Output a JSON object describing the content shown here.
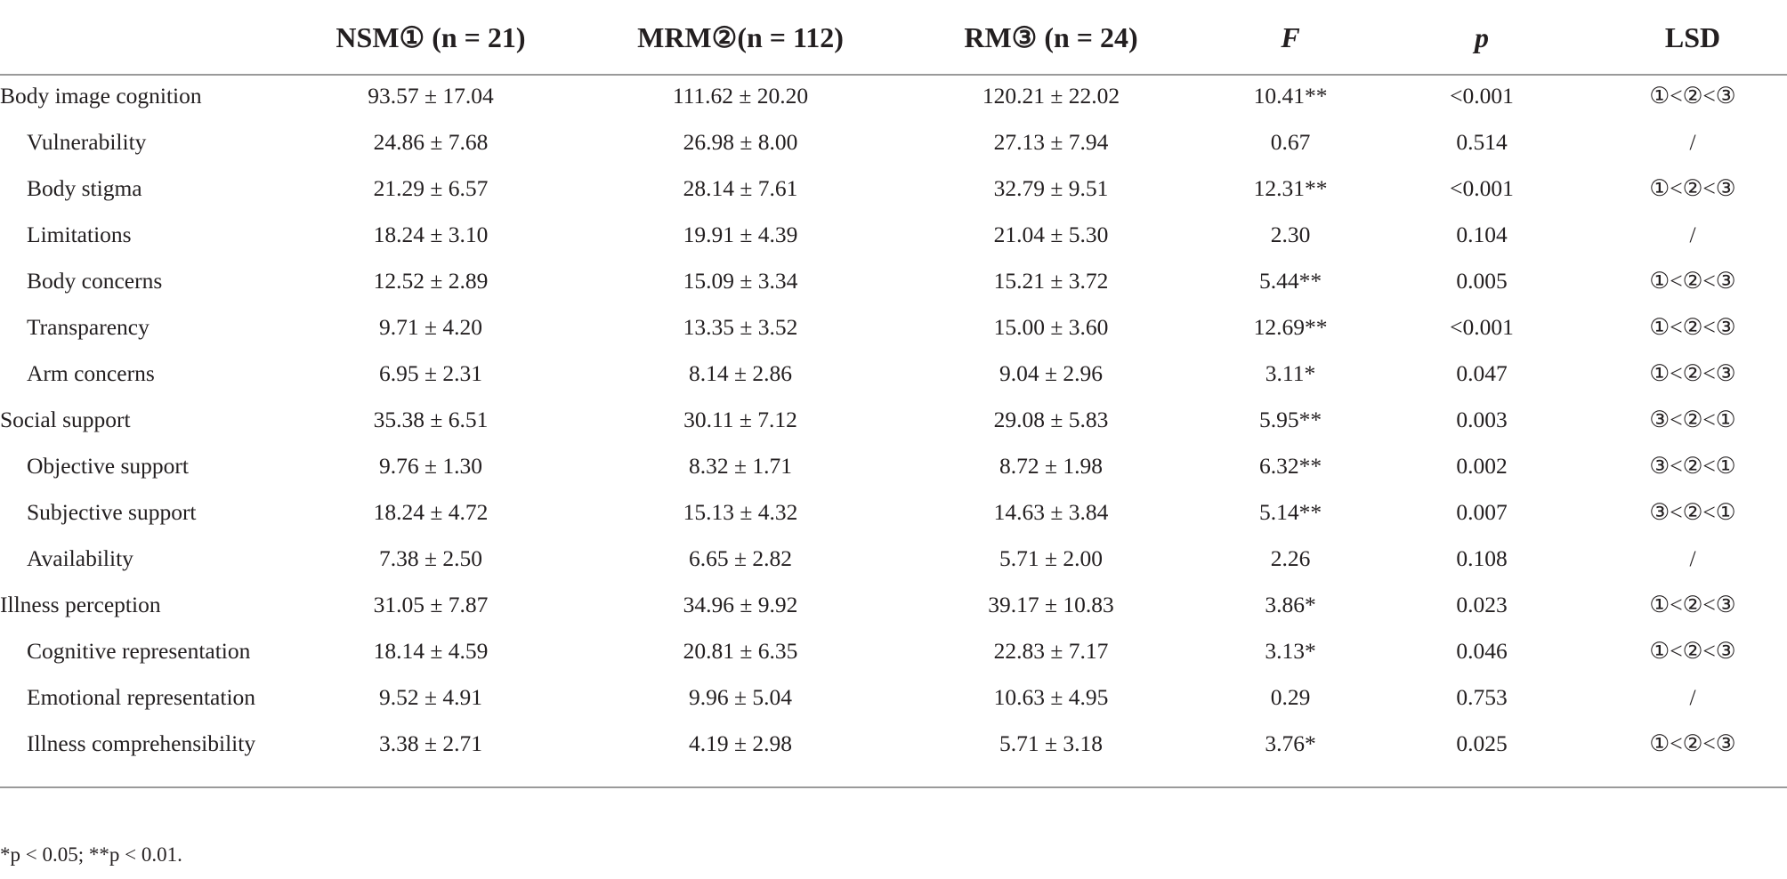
{
  "table": {
    "header": [
      "NSM① (n = 21)",
      "MRM②(n = 112)",
      "RM③ (n = 24)",
      "F",
      "p",
      "LSD"
    ],
    "sections": [
      {
        "row": [
          "Body image cognition",
          "93.57 ± 17.04",
          "111.62 ± 20.20",
          "120.21 ± 22.02",
          "10.41**",
          "<0.001",
          "①<②<③"
        ],
        "subrows": [
          [
            "Vulnerability",
            "24.86 ± 7.68",
            "26.98 ± 8.00",
            "27.13 ± 7.94",
            "0.67",
            "0.514",
            "/"
          ],
          [
            "Body stigma",
            "21.29 ± 6.57",
            "28.14 ± 7.61",
            "32.79 ± 9.51",
            "12.31**",
            "<0.001",
            "①<②<③"
          ],
          [
            "Limitations",
            "18.24 ± 3.10",
            "19.91 ± 4.39",
            "21.04 ± 5.30",
            "2.30",
            "0.104",
            "/"
          ],
          [
            "Body concerns",
            "12.52 ± 2.89",
            "15.09 ± 3.34",
            "15.21 ± 3.72",
            "5.44**",
            "0.005",
            "①<②<③"
          ],
          [
            "Transparency",
            "9.71 ± 4.20",
            "13.35 ± 3.52",
            "15.00 ± 3.60",
            "12.69**",
            "<0.001",
            "①<②<③"
          ],
          [
            "Arm concerns",
            "6.95 ± 2.31",
            "8.14 ± 2.86",
            "9.04 ± 2.96",
            "3.11*",
            "0.047",
            "①<②<③"
          ]
        ]
      },
      {
        "row": [
          "Social support",
          "35.38 ± 6.51",
          "30.11 ± 7.12",
          "29.08 ± 5.83",
          "5.95**",
          "0.003",
          "③<②<①"
        ],
        "subrows": [
          [
            "Objective support",
            "9.76 ± 1.30",
            "8.32 ± 1.71",
            "8.72 ± 1.98",
            "6.32**",
            "0.002",
            "③<②<①"
          ],
          [
            "Subjective support",
            "18.24 ± 4.72",
            "15.13 ± 4.32",
            "14.63 ± 3.84",
            "5.14**",
            "0.007",
            "③<②<①"
          ],
          [
            "Availability",
            "7.38 ± 2.50",
            "6.65 ± 2.82",
            "5.71 ± 2.00",
            "2.26",
            "0.108",
            "/"
          ]
        ]
      },
      {
        "row": [
          "Illness perception",
          "31.05 ± 7.87",
          "34.96 ± 9.92",
          "39.17 ± 10.83",
          "3.86*",
          "0.023",
          "①<②<③"
        ],
        "subrows": [
          [
            "Cognitive representation",
            "18.14 ± 4.59",
            "20.81 ± 6.35",
            "22.83 ± 7.17",
            "3.13*",
            "0.046",
            "①<②<③"
          ],
          [
            "Emotional representation",
            "9.52 ± 4.91",
            "9.96 ± 5.04",
            "10.63 ± 4.95",
            "0.29",
            "0.753",
            "/"
          ],
          [
            "Illness comprehensibility",
            "3.38 ± 2.71",
            "4.19 ± 2.98",
            "5.71 ± 3.18",
            "3.76*",
            "0.025",
            "①<②<③"
          ]
        ]
      }
    ],
    "footnote": "*p < 0.05; **p < 0.01."
  }
}
